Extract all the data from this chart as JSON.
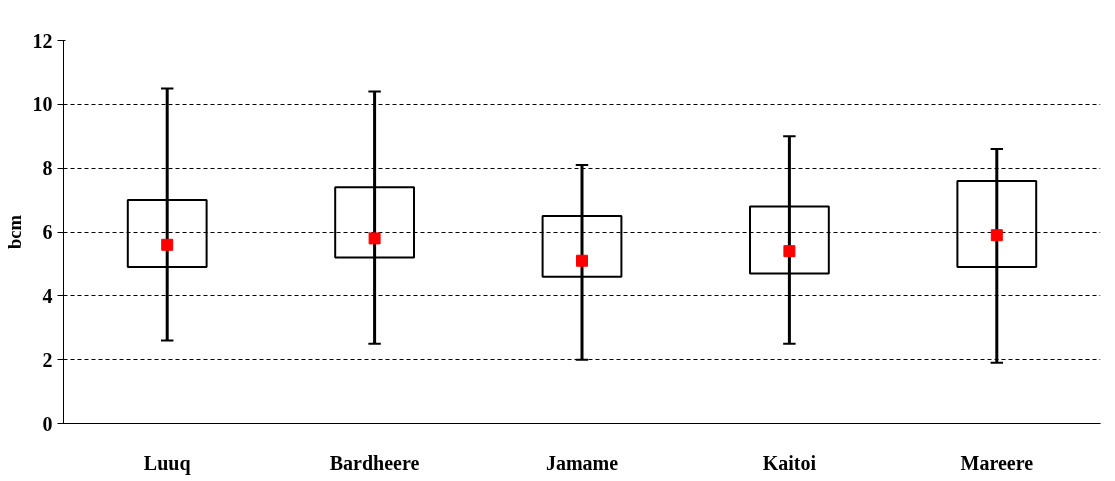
{
  "chart_data": {
    "type": "box",
    "ylabel": "bcm",
    "categories": [
      "Luuq",
      "Bardheere",
      "Jamame",
      "Kaitoi",
      "Mareere"
    ],
    "series": [
      {
        "color": "#000000",
        "boxes": [
          {
            "low": 2.6,
            "q1": 4.9,
            "q3": 7.0,
            "high": 10.5
          },
          {
            "low": 2.5,
            "q1": 5.2,
            "q3": 7.4,
            "high": 10.4
          },
          {
            "low": 2.0,
            "q1": 4.6,
            "q3": 6.5,
            "high": 8.1
          },
          {
            "low": 2.5,
            "q1": 4.7,
            "q3": 6.8,
            "high": 9.0
          },
          {
            "low": 1.9,
            "q1": 4.9,
            "q3": 7.6,
            "high": 8.6
          }
        ]
      },
      {
        "type": "scatter",
        "color": "#ff0000",
        "x": [
          "Luuq",
          "Bardheere",
          "Jamame",
          "Kaitoi",
          "Mareere"
        ],
        "values": [
          5.6,
          5.8,
          5.1,
          5.4,
          5.9
        ]
      }
    ],
    "ylim": [
      0,
      12
    ],
    "yticks": [
      0,
      2,
      4,
      6,
      8,
      10,
      12
    ],
    "grid": "y",
    "marker": "square"
  }
}
